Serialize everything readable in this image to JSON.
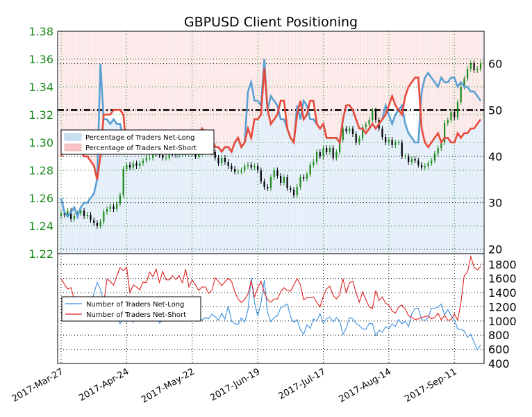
{
  "chart_data": {
    "type": "line",
    "title": "GBPUSD Client Positioning",
    "x_tick_labels": [
      "2017-Mar-27",
      "2017-Apr-24",
      "2017-May-22",
      "2017-Jun-19",
      "2017-Jul-17",
      "2017-Aug-14",
      "2017-Sep-11"
    ],
    "num_days": 129,
    "top_panel": {
      "price_axis": {
        "ylim": [
          1.22,
          1.38
        ],
        "ticks": [
          "1.22",
          "1.24",
          "1.26",
          "1.28",
          "1.30",
          "1.32",
          "1.34",
          "1.36",
          "1.38"
        ]
      },
      "pct_axis": {
        "ylim": [
          19,
          67
        ],
        "ticks": [
          "20",
          "30",
          "40",
          "50",
          "60"
        ]
      },
      "reference_line": 50,
      "legend": {
        "position": "left",
        "entries": [
          "Percentage of Traders Net-Long",
          "Percentage of Traders Net-Short"
        ]
      },
      "price_close": [
        1.249,
        1.248,
        1.251,
        1.245,
        1.247,
        1.249,
        1.251,
        1.247,
        1.248,
        1.244,
        1.242,
        1.24,
        1.243,
        1.25,
        1.252,
        1.254,
        1.252,
        1.256,
        1.262,
        1.281,
        1.284,
        1.282,
        1.285,
        1.283,
        1.285,
        1.287,
        1.289,
        1.289,
        1.293,
        1.292,
        1.291,
        1.289,
        1.289,
        1.296,
        1.292,
        1.291,
        1.292,
        1.294,
        1.292,
        1.292,
        1.294,
        1.29,
        1.292,
        1.294,
        1.296,
        1.295,
        1.293,
        1.289,
        1.285,
        1.289,
        1.286,
        1.283,
        1.281,
        1.279,
        1.279,
        1.28,
        1.283,
        1.284,
        1.282,
        1.283,
        1.28,
        1.272,
        1.268,
        1.267,
        1.275,
        1.28,
        1.276,
        1.271,
        1.275,
        1.267,
        1.266,
        1.262,
        1.268,
        1.275,
        1.274,
        1.277,
        1.284,
        1.286,
        1.293,
        1.29,
        1.296,
        1.293,
        1.296,
        1.289,
        1.293,
        1.302,
        1.31,
        1.308,
        1.31,
        1.306,
        1.3,
        1.303,
        1.311,
        1.313,
        1.316,
        1.323,
        1.316,
        1.31,
        1.304,
        1.3,
        1.302,
        1.298,
        1.3,
        1.3,
        1.29,
        1.29,
        1.286,
        1.288,
        1.287,
        1.284,
        1.282,
        1.283,
        1.285,
        1.287,
        1.292,
        1.296,
        1.3,
        1.314,
        1.316,
        1.322,
        1.318,
        1.329,
        1.34,
        1.346,
        1.353,
        1.357,
        1.352,
        1.353,
        1.357
      ],
      "pct_net_long": [
        31,
        28,
        27,
        28,
        29,
        27,
        29,
        30,
        30,
        31,
        32,
        35,
        60,
        48,
        48,
        47,
        48,
        47,
        47,
        44,
        41,
        41,
        42,
        43,
        43,
        41,
        42,
        43,
        43,
        42,
        43,
        42,
        43,
        44,
        44,
        44,
        43,
        43,
        42,
        42,
        41,
        43,
        44,
        46,
        45,
        44,
        44,
        42,
        42,
        41,
        42,
        42,
        41,
        43,
        44,
        42,
        43,
        54,
        56,
        52,
        52,
        51,
        61,
        50,
        53,
        52,
        51,
        48,
        48,
        46,
        44,
        43,
        51,
        48,
        52,
        51,
        48,
        48,
        47,
        46,
        47,
        44,
        44,
        44,
        44,
        43,
        48,
        51,
        51,
        50,
        48,
        46,
        46,
        45,
        46,
        47,
        46,
        47,
        48,
        51,
        49,
        47,
        49,
        50,
        51,
        47,
        45,
        44,
        43,
        43,
        54,
        57,
        58,
        57,
        56,
        55,
        57,
        56,
        56,
        57,
        57,
        55,
        56,
        55,
        55,
        54,
        54,
        53,
        52
      ],
      "pct_net_short": [
        40,
        42,
        43,
        42,
        41,
        43,
        41,
        40,
        40,
        39,
        38,
        35,
        40,
        49,
        49,
        49,
        50,
        50,
        50,
        49,
        41,
        41,
        42,
        43,
        43,
        41,
        42,
        43,
        43,
        42,
        43,
        42,
        43,
        44,
        44,
        44,
        43,
        43,
        42,
        42,
        41,
        43,
        44,
        46,
        45,
        44,
        44,
        42,
        42,
        41,
        42,
        42,
        41,
        43,
        44,
        42,
        43,
        46,
        44,
        48,
        48,
        49,
        59,
        50,
        47,
        48,
        49,
        52,
        52,
        46,
        44,
        43,
        49,
        52,
        48,
        49,
        52,
        52,
        47,
        46,
        47,
        44,
        44,
        44,
        44,
        43,
        48,
        51,
        51,
        50,
        48,
        46,
        46,
        45,
        46,
        47,
        46,
        47,
        48,
        49,
        51,
        53,
        51,
        50,
        49,
        53,
        55,
        56,
        57,
        57,
        46,
        43,
        42,
        43,
        44,
        45,
        43,
        44,
        44,
        43,
        43,
        45,
        44,
        45,
        45,
        46,
        46,
        47,
        48
      ]
    },
    "bottom_panel": {
      "ylim": [
        400,
        1950
      ],
      "ticks": [
        "400",
        "600",
        "800",
        "1000",
        "1200",
        "1400",
        "1600",
        "1800"
      ],
      "legend": {
        "position": "left",
        "entries": [
          "Number of Traders Net-Long",
          "Number of Traders Net-Short"
        ]
      },
      "series": [
        {
          "name": "Number of Traders Net-Long",
          "values": [
            1075,
            1235,
            1320,
            1015,
            1005,
            1225,
            1080,
            1200,
            1305,
            1210,
            1385,
            1545,
            1450,
            1260,
            1040,
            1100,
            1180,
            1105,
            960,
            1040,
            985,
            1090,
            980,
            1185,
            1060,
            1225,
            1155,
            1090,
            1050,
            1100,
            970,
            1010,
            1110,
            1085,
            1055,
            1230,
            1090,
            1195,
            1185,
            1050,
            1020,
            1105,
            1060,
            1010,
            1050,
            1030,
            1095,
            1060,
            1010,
            1110,
            1025,
            1210,
            995,
            965,
            950,
            1045,
            985,
            1150,
            1610,
            1260,
            1070,
            1255,
            1580,
            1120,
            990,
            1050,
            1070,
            1185,
            1210,
            1240,
            1060,
            980,
            1020,
            880,
            810,
            945,
            895,
            1030,
            1000,
            1105,
            970,
            1030,
            1055,
            990,
            1050,
            1000,
            810,
            900,
            1050,
            1030,
            965,
            935,
            890,
            880,
            965,
            960,
            790,
            870,
            840,
            920,
            890,
            960,
            920,
            1020,
            960,
            1000,
            920,
            1100,
            1180,
            1180,
            1020,
            1005,
            1050,
            1180,
            1180,
            1195,
            1240,
            1085,
            1160,
            1075,
            1010,
            890,
            880,
            860,
            770,
            810,
            700,
            590,
            660
          ]
        },
        {
          "name": "Number of Traders Net-Short",
          "values": [
            1595,
            1520,
            1450,
            1470,
            1305,
            1265,
            1330,
            1250,
            1165,
            1100,
            1075,
            1010,
            1140,
            1250,
            1590,
            1560,
            1505,
            1635,
            1755,
            1710,
            1760,
            1395,
            1510,
            1480,
            1440,
            1550,
            1540,
            1690,
            1625,
            1730,
            1545,
            1700,
            1580,
            1580,
            1640,
            1585,
            1640,
            1540,
            1730,
            1480,
            1580,
            1510,
            1430,
            1480,
            1480,
            1390,
            1430,
            1610,
            1560,
            1500,
            1550,
            1600,
            1560,
            1410,
            1310,
            1260,
            1305,
            1380,
            1570,
            1340,
            1460,
            1560,
            1400,
            1300,
            1265,
            1310,
            1310,
            1410,
            1470,
            1430,
            1420,
            1505,
            1600,
            1510,
            1300,
            1330,
            1330,
            1340,
            1260,
            1200,
            1350,
            1455,
            1490,
            1360,
            1310,
            1370,
            1600,
            1400,
            1540,
            1560,
            1400,
            1265,
            1410,
            1300,
            1200,
            1175,
            1430,
            1290,
            1340,
            1250,
            1225,
            1140,
            1110,
            1200,
            1225,
            1170,
            1075,
            1050,
            1020,
            1030,
            1050,
            1060,
            1075,
            1030,
            1050,
            1110,
            1015,
            1080,
            1010,
            1020,
            1100,
            1010,
            1265,
            1640,
            1690,
            1910,
            1760,
            1720,
            1770
          ]
        }
      ]
    }
  }
}
